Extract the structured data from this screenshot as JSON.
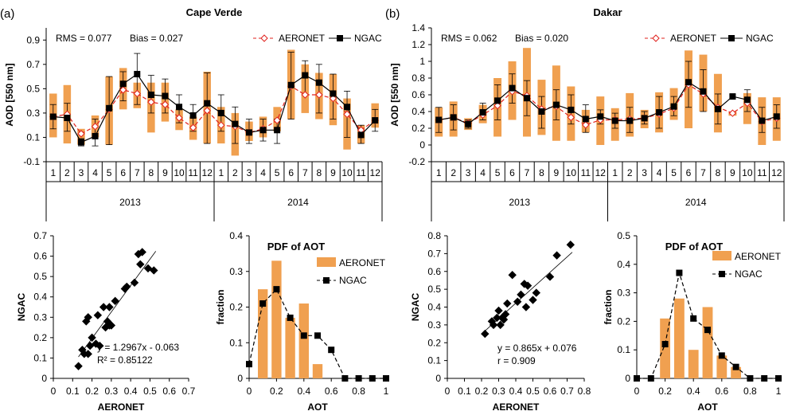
{
  "colors": {
    "aeronet": "#f4a460",
    "aeronet_bar": "#f0a050",
    "aeronet_line": "#e0201c",
    "ngac": "#000000"
  },
  "chart_data": [
    {
      "panel_label": "(a)",
      "type": "line",
      "title": "Cape Verde",
      "ylabel": "AOD [550 nm]",
      "ylim": [
        -0.1,
        1.0
      ],
      "yticks": [
        -0.1,
        0.1,
        0.3,
        0.5,
        0.7,
        0.9
      ],
      "months": [
        "1",
        "2",
        "3",
        "4",
        "5",
        "6",
        "7",
        "8",
        "9",
        "10",
        "11",
        "12",
        "1",
        "2",
        "3",
        "4",
        "5",
        "6",
        "7",
        "8",
        "9",
        "10",
        "11",
        "12"
      ],
      "years": [
        "2013",
        "2014"
      ],
      "stats_rms": "RMS = 0.077",
      "stats_bias": "Bias = 0.027",
      "series": [
        {
          "name": "AERONET",
          "values": [
            0.27,
            0.29,
            0.13,
            0.19,
            0.33,
            0.49,
            0.46,
            0.39,
            0.37,
            0.26,
            0.18,
            0.32,
            0.2,
            0.19,
            0.14,
            0.17,
            0.24,
            0.52,
            0.45,
            0.45,
            0.42,
            0.29,
            0.16,
            0.24
          ],
          "range_low": [
            0.1,
            0.05,
            0.04,
            0.1,
            0.04,
            0.33,
            0.34,
            0.14,
            0.23,
            0.16,
            0.08,
            0.05,
            0.05,
            -0.05,
            0.07,
            0.1,
            0.15,
            0.25,
            0.3,
            0.25,
            0.2,
            0.0,
            0.05,
            0.18
          ],
          "range_high": [
            0.46,
            0.53,
            0.17,
            0.28,
            0.6,
            0.67,
            0.55,
            0.55,
            0.55,
            0.33,
            0.27,
            0.64,
            0.35,
            0.3,
            0.23,
            0.27,
            0.35,
            0.82,
            0.7,
            0.63,
            0.62,
            0.42,
            0.2,
            0.38
          ]
        },
        {
          "name": "NGAC",
          "values": [
            0.27,
            0.26,
            0.06,
            0.11,
            0.34,
            0.54,
            0.62,
            0.45,
            0.44,
            0.35,
            0.28,
            0.38,
            0.3,
            0.21,
            0.14,
            0.16,
            0.16,
            0.53,
            0.61,
            0.55,
            0.46,
            0.35,
            0.12,
            0.24
          ],
          "err_low": [
            0.17,
            0.15,
            0.03,
            0.03,
            0.04,
            0.4,
            0.37,
            0.3,
            0.3,
            0.22,
            0.15,
            0.05,
            0.15,
            0.05,
            0.05,
            0.07,
            0.05,
            0.25,
            0.45,
            0.3,
            0.25,
            0.1,
            0.05,
            0.15
          ],
          "err_high": [
            0.37,
            0.38,
            0.09,
            0.25,
            0.6,
            0.64,
            0.79,
            0.61,
            0.58,
            0.45,
            0.37,
            0.63,
            0.45,
            0.35,
            0.25,
            0.25,
            0.25,
            0.8,
            0.73,
            0.7,
            0.62,
            0.48,
            0.2,
            0.33
          ]
        }
      ]
    },
    {
      "panel_label": "(b)",
      "type": "line",
      "title": "Dakar",
      "ylabel": "AOD [550 nm]",
      "ylim": [
        -0.2,
        1.4
      ],
      "yticks": [
        -0.2,
        0,
        0.2,
        0.4,
        0.6,
        0.8,
        1,
        1.2,
        1.4
      ],
      "months": [
        "1",
        "2",
        "3",
        "4",
        "5",
        "6",
        "7",
        "8",
        "9",
        "10",
        "11",
        "12",
        "1",
        "2",
        "3",
        "4",
        "5",
        "6",
        "7",
        "8",
        "9",
        "10",
        "11",
        "12"
      ],
      "years": [
        "2013",
        "2014"
      ],
      "stats_rms": "RMS = 0.062",
      "stats_bias": "Bias = 0.020",
      "series": [
        {
          "name": "AERONET",
          "values": [
            0.3,
            0.33,
            0.26,
            0.36,
            0.47,
            0.64,
            0.59,
            0.43,
            0.46,
            0.33,
            0.24,
            0.3,
            0.3,
            0.31,
            0.32,
            0.37,
            0.44,
            0.72,
            0.61,
            0.45,
            0.38,
            0.5,
            0.28,
            0.32
          ],
          "range_low": [
            0.1,
            0.1,
            0.18,
            0.26,
            0.1,
            0.3,
            0.1,
            0.12,
            0.05,
            0.05,
            0.15,
            0.0,
            0.05,
            0.1,
            0.2,
            0.15,
            0.3,
            0.2,
            0.4,
            0.15,
            0.35,
            0.25,
            0.0,
            0.05
          ],
          "range_high": [
            0.45,
            0.52,
            0.32,
            0.48,
            0.8,
            1.0,
            1.16,
            0.78,
            0.95,
            0.7,
            0.42,
            0.58,
            0.44,
            0.62,
            0.42,
            0.63,
            0.68,
            1.13,
            1.08,
            0.85,
            0.4,
            0.62,
            0.57,
            0.57
          ]
        },
        {
          "name": "NGAC",
          "values": [
            0.3,
            0.33,
            0.25,
            0.39,
            0.53,
            0.68,
            0.56,
            0.4,
            0.48,
            0.42,
            0.31,
            0.34,
            0.29,
            0.29,
            0.32,
            0.39,
            0.46,
            0.75,
            0.64,
            0.43,
            0.58,
            0.54,
            0.29,
            0.34
          ],
          "err_low": [
            0.15,
            0.18,
            0.2,
            0.3,
            0.3,
            0.5,
            0.35,
            0.2,
            0.3,
            0.25,
            0.15,
            0.25,
            0.2,
            0.15,
            0.25,
            0.2,
            0.35,
            0.45,
            0.4,
            0.25,
            0.55,
            0.4,
            0.15,
            0.2
          ],
          "err_high": [
            0.45,
            0.48,
            0.3,
            0.5,
            0.72,
            0.85,
            0.77,
            0.58,
            0.66,
            0.6,
            0.48,
            0.42,
            0.38,
            0.45,
            0.4,
            0.58,
            0.58,
            1.0,
            0.9,
            0.61,
            0.6,
            0.66,
            0.45,
            0.48
          ]
        }
      ]
    },
    {
      "type": "scatter",
      "xlabel": "AERONET",
      "ylabel": "NGAC",
      "xlim": [
        0,
        0.7
      ],
      "ylim": [
        0,
        0.7
      ],
      "xticks": [
        0,
        0.1,
        0.2,
        0.3,
        0.4,
        0.5,
        0.6,
        0.7
      ],
      "yticks": [
        0,
        0.1,
        0.2,
        0.3,
        0.4,
        0.5,
        0.6,
        0.7
      ],
      "equation": "y = 1.2967x - 0.063",
      "fit_stat": "R² = 0.85122",
      "fit": {
        "slope": 1.2967,
        "intercept": -0.063,
        "x_range": [
          0.13,
          0.53
        ]
      },
      "x": [
        0.13,
        0.15,
        0.16,
        0.17,
        0.18,
        0.18,
        0.19,
        0.2,
        0.22,
        0.23,
        0.24,
        0.26,
        0.27,
        0.28,
        0.29,
        0.29,
        0.3,
        0.32,
        0.37,
        0.38,
        0.42,
        0.44,
        0.45,
        0.46,
        0.49,
        0.52
      ],
      "y": [
        0.06,
        0.14,
        0.12,
        0.28,
        0.3,
        0.12,
        0.16,
        0.2,
        0.17,
        0.31,
        0.16,
        0.35,
        0.25,
        0.28,
        0.26,
        0.35,
        0.26,
        0.38,
        0.44,
        0.45,
        0.47,
        0.61,
        0.56,
        0.62,
        0.54,
        0.53
      ]
    },
    {
      "type": "bar",
      "title": "PDF of AOT",
      "xlabel": "AOT",
      "ylabel": "fraction",
      "xlim": [
        0,
        1
      ],
      "ylim": [
        0,
        0.4
      ],
      "xticks": [
        0,
        0.2,
        0.4,
        0.6,
        0.8,
        1
      ],
      "yticks": [
        0,
        0.1,
        0.2,
        0.3,
        0.4
      ],
      "series": [
        {
          "name": "AERONET",
          "x": [
            0.1,
            0.2,
            0.3,
            0.4,
            0.5
          ],
          "values": [
            0.25,
            0.33,
            0.17,
            0.21,
            0.04
          ]
        },
        {
          "name": "NGAC",
          "x": [
            0,
            0.1,
            0.2,
            0.3,
            0.4,
            0.5,
            0.6,
            0.7,
            0.8,
            0.9,
            1.0
          ],
          "values": [
            0.04,
            0.21,
            0.25,
            0.17,
            0.12,
            0.12,
            0.08,
            0,
            0,
            0,
            0
          ]
        }
      ]
    },
    {
      "type": "scatter",
      "xlabel": "AERONET",
      "ylabel": "NGAC",
      "xlim": [
        0,
        0.8
      ],
      "ylim": [
        0,
        0.8
      ],
      "xticks": [
        0,
        0.1,
        0.2,
        0.3,
        0.4,
        0.5,
        0.6,
        0.7,
        0.8
      ],
      "yticks": [
        0,
        0.1,
        0.2,
        0.3,
        0.4,
        0.5,
        0.6,
        0.7,
        0.8
      ],
      "equation": "y = 0.865x + 0.076",
      "fit_stat": "r = 0.909",
      "fit": {
        "slope": 0.865,
        "intercept": 0.076,
        "x_range": [
          0.2,
          0.73
        ]
      },
      "x": [
        0.22,
        0.26,
        0.27,
        0.29,
        0.3,
        0.31,
        0.32,
        0.33,
        0.34,
        0.35,
        0.38,
        0.41,
        0.43,
        0.45,
        0.46,
        0.47,
        0.5,
        0.52,
        0.6,
        0.64,
        0.72
      ],
      "y": [
        0.25,
        0.32,
        0.3,
        0.34,
        0.38,
        0.3,
        0.34,
        0.33,
        0.36,
        0.42,
        0.58,
        0.43,
        0.47,
        0.53,
        0.4,
        0.52,
        0.44,
        0.48,
        0.57,
        0.69,
        0.75
      ]
    },
    {
      "type": "bar",
      "title": "PDF of AOT",
      "xlabel": "AOT",
      "ylabel": "fraction",
      "xlim": [
        0,
        1
      ],
      "ylim": [
        0,
        0.5
      ],
      "xticks": [
        0,
        0.2,
        0.4,
        0.6,
        0.8,
        1
      ],
      "yticks": [
        0,
        0.1,
        0.2,
        0.3,
        0.4,
        0.5
      ],
      "series": [
        {
          "name": "AERONET",
          "x": [
            0.2,
            0.3,
            0.4,
            0.5,
            0.6,
            0.7
          ],
          "values": [
            0.21,
            0.28,
            0.1,
            0.25,
            0.08,
            0.04
          ]
        },
        {
          "name": "NGAC",
          "x": [
            0,
            0.1,
            0.2,
            0.3,
            0.4,
            0.5,
            0.6,
            0.7,
            0.8,
            0.9,
            1.0
          ],
          "values": [
            0,
            0,
            0.12,
            0.37,
            0.21,
            0.17,
            0.08,
            0.04,
            0,
            0,
            0
          ]
        }
      ]
    }
  ]
}
